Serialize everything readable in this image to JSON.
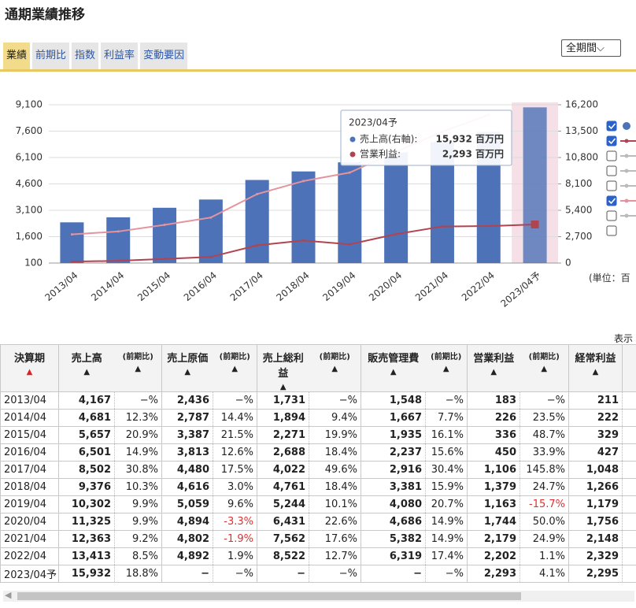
{
  "header": {
    "title": "通期業績推移"
  },
  "tabs": [
    "業績",
    "前期比",
    "指数",
    "利益率",
    "変動要因"
  ],
  "period_select": "全期間",
  "chart_data": {
    "type": "bar_line",
    "categories": [
      "2013/04",
      "2014/04",
      "2015/04",
      "2016/04",
      "2017/04",
      "2018/04",
      "2019/04",
      "2020/04",
      "2021/04",
      "2022/04",
      "2023/04予"
    ],
    "series": [
      {
        "type": "bar",
        "axis": "y2",
        "color": "#4d72b8",
        "values": [
          4167,
          4681,
          5657,
          6501,
          8502,
          9376,
          10302,
          11325,
          12363,
          13413,
          15932
        ]
      },
      {
        "type": "line",
        "axis": "y",
        "color": "#e4949e",
        "values": [
          1731,
          1894,
          2271,
          2688,
          4022,
          4761,
          5244,
          6431,
          7562,
          8522,
          null
        ]
      },
      {
        "type": "line",
        "axis": "y",
        "color": "#b04450",
        "values": [
          183,
          226,
          336,
          450,
          1106,
          1379,
          1163,
          1744,
          2179,
          2202,
          2293
        ]
      }
    ],
    "ylim": [
      100,
      9100
    ],
    "yticks": [
      100,
      {
        "value": 1600,
        "label": "1,600"
      },
      {
        "value": 3100,
        "label": "3,100"
      },
      {
        "value": 4600,
        "label": "4,600"
      },
      {
        "value": 6100,
        "label": "6,100"
      },
      {
        "value": 7600,
        "label": "7,600"
      },
      {
        "value": 9100,
        "label": "9,100"
      }
    ],
    "y2lim": [
      0,
      16200
    ],
    "y2ticks": [
      0,
      {
        "value": 2700,
        "label": "2,700"
      },
      {
        "value": 5400,
        "label": "5,400"
      },
      {
        "value": 8100,
        "label": "8,100"
      },
      {
        "value": 10800,
        "label": "10,800"
      },
      {
        "value": 13500,
        "label": "13,500"
      },
      {
        "value": 16200,
        "label": "16,200"
      }
    ],
    "grid": true
  },
  "tooltip": {
    "title": "2023/04予",
    "items": [
      {
        "label": "売上高(右軸):",
        "value": "15,932 百万円",
        "color": "#4d72b8"
      },
      {
        "label": "営業利益:",
        "value": "2,293 百万円",
        "color": "#b04450"
      }
    ]
  },
  "unit_note": "(単位：百",
  "display_label": "表示",
  "table": {
    "header": [
      "決算期",
      "売上高",
      "(前期比)",
      "売上原価",
      "(前期比)",
      "売上総利益",
      "(前期比)",
      "販売管理費",
      "(前期比)",
      "営業利益",
      "(前期比)",
      "経常利益"
    ],
    "rows": [
      [
        "2013/04",
        "4,167",
        "−%",
        "2,436",
        "−%",
        "1,731",
        "−%",
        "1,548",
        "−%",
        "183",
        "−%",
        "211"
      ],
      [
        "2014/04",
        "4,681",
        "12.3%",
        "2,787",
        "14.4%",
        "1,894",
        "9.4%",
        "1,667",
        "7.7%",
        "226",
        "23.5%",
        "222"
      ],
      [
        "2015/04",
        "5,657",
        "20.9%",
        "3,387",
        "21.5%",
        "2,271",
        "19.9%",
        "1,935",
        "16.1%",
        "336",
        "48.7%",
        "329"
      ],
      [
        "2016/04",
        "6,501",
        "14.9%",
        "3,813",
        "12.6%",
        "2,688",
        "18.4%",
        "2,237",
        "15.6%",
        "450",
        "33.9%",
        "427"
      ],
      [
        "2017/04",
        "8,502",
        "30.8%",
        "4,480",
        "17.5%",
        "4,022",
        "49.6%",
        "2,916",
        "30.4%",
        "1,106",
        "145.8%",
        "1,048"
      ],
      [
        "2018/04",
        "9,376",
        "10.3%",
        "4,616",
        "3.0%",
        "4,761",
        "18.4%",
        "3,381",
        "15.9%",
        "1,379",
        "24.7%",
        "1,266"
      ],
      [
        "2019/04",
        "10,302",
        "9.9%",
        "5,059",
        "9.6%",
        "5,244",
        "10.1%",
        "4,080",
        "20.7%",
        "1,163",
        "-15.7%",
        "1,179"
      ],
      [
        "2020/04",
        "11,325",
        "9.9%",
        "4,894",
        "-3.3%",
        "6,431",
        "22.6%",
        "4,686",
        "14.9%",
        "1,744",
        "50.0%",
        "1,756"
      ],
      [
        "2021/04",
        "12,363",
        "9.2%",
        "4,802",
        "-1.9%",
        "7,562",
        "17.6%",
        "5,382",
        "14.9%",
        "2,179",
        "24.9%",
        "2,148"
      ],
      [
        "2022/04",
        "13,413",
        "8.5%",
        "4,892",
        "1.9%",
        "8,522",
        "12.7%",
        "6,319",
        "17.4%",
        "2,202",
        "1.1%",
        "2,329"
      ],
      [
        "2023/04予",
        "15,932",
        "18.8%",
        "−",
        "−%",
        "−",
        "−%",
        "−",
        "−%",
        "2,293",
        "4.1%",
        "2,295"
      ]
    ]
  }
}
